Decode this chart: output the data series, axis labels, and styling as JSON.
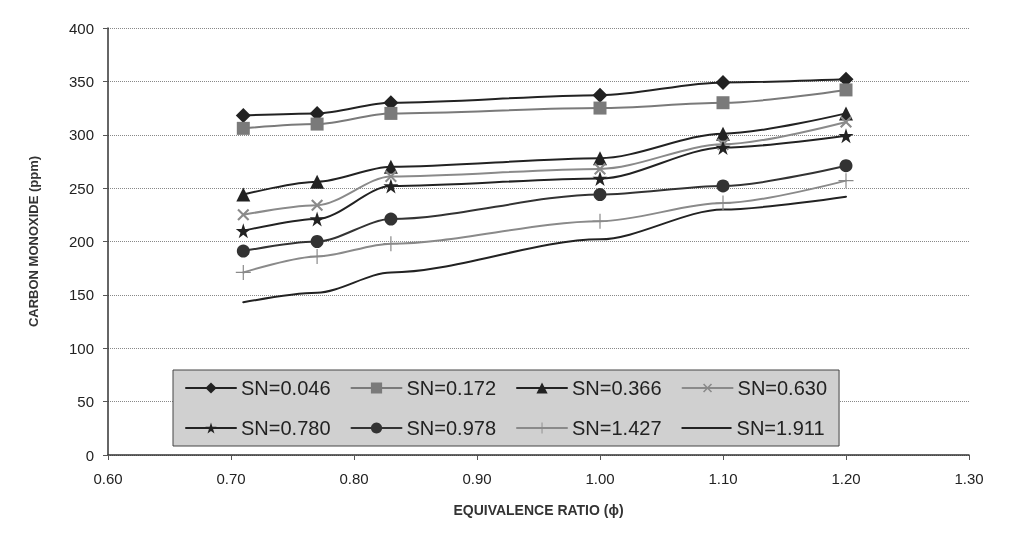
{
  "chart_data": {
    "type": "line",
    "xlabel": "EQUIVALENCE RATIO (ϕ)",
    "ylabel": "CARBON MONOXIDE (ppm)",
    "x": [
      0.71,
      0.77,
      0.83,
      1.0,
      1.1,
      1.2
    ],
    "xlim": [
      0.6,
      1.3
    ],
    "xticks": [
      {
        "value": 0.6,
        "label": "0.60"
      },
      {
        "value": 0.7,
        "label": "0.70"
      },
      {
        "value": 0.8,
        "label": "0.80"
      },
      {
        "value": 0.9,
        "label": "0.90"
      },
      {
        "value": 1.0,
        "label": "1.00"
      },
      {
        "value": 1.1,
        "label": "1.10"
      },
      {
        "value": 1.2,
        "label": "1.20"
      },
      {
        "value": 1.3,
        "label": "1.30"
      }
    ],
    "ylim": [
      0,
      400
    ],
    "yticks": [
      0,
      50,
      100,
      150,
      200,
      250,
      300,
      350,
      400
    ],
    "grid": "y",
    "legend": "bottom",
    "line_style": "solid",
    "series": [
      {
        "name": "SN=0.046",
        "color": "#222222",
        "marker": "diamond",
        "values": [
          318,
          320,
          330,
          337,
          349,
          352
        ]
      },
      {
        "name": "SN=0.172",
        "color": "#7a7a7a",
        "marker": "square",
        "values": [
          306,
          310,
          320,
          325,
          330,
          342
        ]
      },
      {
        "name": "SN=0.366",
        "color": "#222222",
        "marker": "triangle",
        "values": [
          244,
          256,
          270,
          278,
          301,
          320
        ]
      },
      {
        "name": "SN=0.630",
        "color": "#8a8a8a",
        "marker": "cross",
        "values": [
          225,
          234,
          261,
          268,
          291,
          312
        ]
      },
      {
        "name": "SN=0.780",
        "color": "#222222",
        "marker": "star",
        "values": [
          210,
          221,
          252,
          259,
          288,
          299
        ]
      },
      {
        "name": "SN=0.978",
        "color": "#333333",
        "marker": "circle",
        "values": [
          191,
          200,
          221,
          244,
          252,
          271
        ]
      },
      {
        "name": "SN=1.427",
        "color": "#8a8a8a",
        "marker": "plus",
        "values": [
          171,
          186,
          198,
          219,
          236,
          257
        ]
      },
      {
        "name": "SN=1.911",
        "color": "#222222",
        "marker": "none",
        "values": [
          143,
          152,
          171,
          202,
          230,
          242
        ]
      }
    ]
  }
}
